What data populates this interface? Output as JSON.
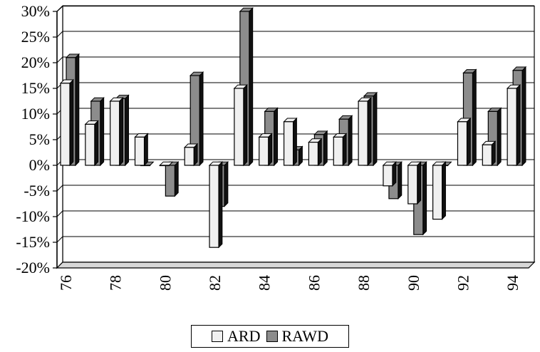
{
  "chart_data": {
    "type": "bar",
    "categories": [
      "76",
      "77",
      "78",
      "79",
      "80",
      "81",
      "82",
      "83",
      "84",
      "85",
      "86",
      "87",
      "88",
      "89",
      "90",
      "91",
      "92",
      "93",
      "94"
    ],
    "x_tick_labels": [
      "76",
      "78",
      "80",
      "82",
      "84",
      "86",
      "88",
      "90",
      "92",
      "94"
    ],
    "series": [
      {
        "name": "ARD",
        "values": [
          16,
          8,
          12.5,
          5.5,
          0,
          3.5,
          -16,
          15,
          5.5,
          8.5,
          4.5,
          5.5,
          12.5,
          -4,
          -7.5,
          -10.5,
          8.5,
          4,
          15
        ]
      },
      {
        "name": "RAWD",
        "values": [
          21,
          12.5,
          13,
          0,
          -6,
          17.5,
          -8,
          30,
          10.5,
          3,
          6,
          9,
          13.5,
          -6.5,
          -13.5,
          0,
          18,
          10.5,
          18.5
        ]
      }
    ],
    "ylim": [
      -20,
      30
    ],
    "y_tick_labels": [
      "30%",
      "25%",
      "20%",
      "15%",
      "10%",
      "5%",
      "0%",
      "-5%",
      "-10%",
      "-15%",
      "-20%"
    ],
    "grid": true,
    "legend_position": "bottom",
    "colors": {
      "ARD": "#f0f0f0",
      "RAWD": "#8c8c8c",
      "edge": "#000000",
      "side": "#111111"
    }
  }
}
